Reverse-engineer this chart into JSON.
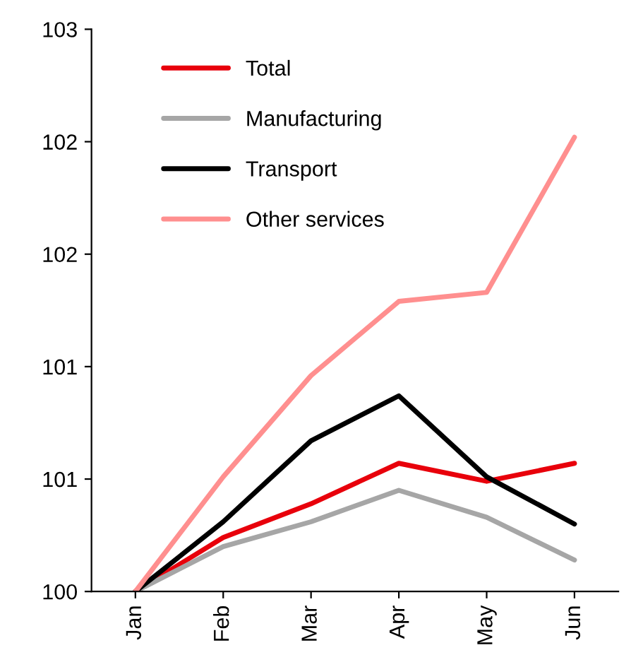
{
  "chart_data": {
    "type": "line",
    "categories": [
      "Jan",
      "Feb",
      "Mar",
      "Apr",
      "May",
      "Jun"
    ],
    "series": [
      {
        "name": "Total",
        "color": "#e8000b",
        "values": [
          100,
          100.24,
          100.39,
          100.57,
          100.49,
          100.57
        ]
      },
      {
        "name": "Manufacturing",
        "color": "#a6a6a6",
        "values": [
          100,
          100.2,
          100.31,
          100.45,
          100.33,
          100.14
        ]
      },
      {
        "name": "Transport",
        "color": "#000000",
        "values": [
          100,
          100.31,
          100.67,
          100.87,
          100.51,
          100.3
        ]
      },
      {
        "name": "Other services",
        "color": "#ff8f8f",
        "values": [
          100,
          100.51,
          100.96,
          101.29,
          101.33,
          102.02
        ]
      }
    ],
    "ylim": [
      100,
      102.5
    ],
    "yticks": [
      100,
      {
        "value": 100.5,
        "label": "101"
      },
      101,
      {
        "value": 101.5,
        "label": "102"
      },
      102,
      {
        "value": 102.5,
        "label": "103"
      }
    ],
    "grid": false,
    "legend": "top left",
    "marker": "none",
    "line_style": "solid"
  }
}
